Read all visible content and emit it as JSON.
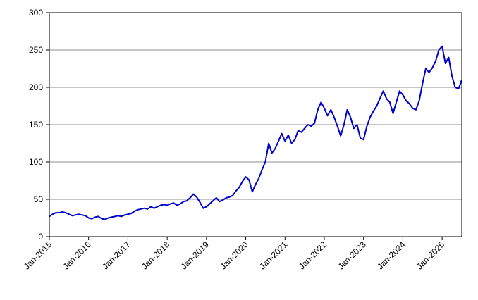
{
  "chart_data": {
    "type": "line",
    "title": "",
    "xlabel": "",
    "ylabel": "",
    "ylim": [
      0,
      300
    ],
    "yticks": [
      0,
      50,
      100,
      150,
      200,
      250,
      300
    ],
    "xlim": [
      "2015-01",
      "2025-07"
    ],
    "xtick_labels": [
      "Jan-2015",
      "Jan-2016",
      "Jan-2017",
      "Jan-2018",
      "Jan-2019",
      "Jan-2020",
      "Jan-2021",
      "Jan-2022",
      "Jan-2023",
      "Jan-2024",
      "Jan-2025"
    ],
    "grid": "horizontal",
    "legend": "none",
    "line_color": "#0000CC",
    "series": [
      {
        "x": [
          "2015-01",
          "2015-02",
          "2015-03",
          "2015-04",
          "2015-05",
          "2015-06",
          "2015-07",
          "2015-08",
          "2015-09",
          "2015-10",
          "2015-11",
          "2015-12",
          "2016-01",
          "2016-02",
          "2016-03",
          "2016-04",
          "2016-05",
          "2016-06",
          "2016-07",
          "2016-08",
          "2016-09",
          "2016-10",
          "2016-11",
          "2016-12",
          "2017-01",
          "2017-02",
          "2017-03",
          "2017-04",
          "2017-05",
          "2017-06",
          "2017-07",
          "2017-08",
          "2017-09",
          "2017-10",
          "2017-11",
          "2017-12",
          "2018-01",
          "2018-02",
          "2018-03",
          "2018-04",
          "2018-05",
          "2018-06",
          "2018-07",
          "2018-08",
          "2018-09",
          "2018-10",
          "2018-11",
          "2018-12",
          "2019-01",
          "2019-02",
          "2019-03",
          "2019-04",
          "2019-05",
          "2019-06",
          "2019-07",
          "2019-08",
          "2019-09",
          "2019-10",
          "2019-11",
          "2019-12",
          "2020-01",
          "2020-02",
          "2020-03",
          "2020-04",
          "2020-05",
          "2020-06",
          "2020-07",
          "2020-08",
          "2020-09",
          "2020-10",
          "2020-11",
          "2020-12",
          "2021-01",
          "2021-02",
          "2021-03",
          "2021-04",
          "2021-05",
          "2021-06",
          "2021-07",
          "2021-08",
          "2021-09",
          "2021-10",
          "2021-11",
          "2021-12",
          "2022-01",
          "2022-02",
          "2022-03",
          "2022-04",
          "2022-05",
          "2022-06",
          "2022-07",
          "2022-08",
          "2022-09",
          "2022-10",
          "2022-11",
          "2022-12",
          "2023-01",
          "2023-02",
          "2023-03",
          "2023-04",
          "2023-05",
          "2023-06",
          "2023-07",
          "2023-08",
          "2023-09",
          "2023-10",
          "2023-11",
          "2023-12",
          "2024-01",
          "2024-02",
          "2024-03",
          "2024-04",
          "2024-05",
          "2024-06",
          "2024-07",
          "2024-08",
          "2024-09",
          "2024-10",
          "2024-11",
          "2024-12",
          "2025-01",
          "2025-02",
          "2025-03",
          "2025-04",
          "2025-05",
          "2025-06",
          "2025-07"
        ],
        "values": [
          27,
          30,
          32,
          32,
          33,
          32,
          30,
          28,
          29,
          30,
          29,
          28,
          25,
          24,
          26,
          27,
          24,
          23,
          25,
          26,
          27,
          28,
          27,
          29,
          30,
          31,
          34,
          36,
          37,
          38,
          37,
          40,
          38,
          40,
          42,
          43,
          42,
          44,
          45,
          42,
          44,
          47,
          48,
          52,
          57,
          53,
          46,
          38,
          40,
          44,
          48,
          52,
          47,
          49,
          52,
          53,
          55,
          61,
          66,
          74,
          80,
          76,
          60,
          70,
          78,
          90,
          100,
          125,
          112,
          118,
          128,
          138,
          128,
          136,
          125,
          130,
          142,
          140,
          145,
          150,
          148,
          152,
          170,
          180,
          172,
          162,
          170,
          160,
          148,
          135,
          150,
          170,
          160,
          145,
          150,
          132,
          130,
          148,
          160,
          168,
          175,
          185,
          195,
          185,
          180,
          165,
          180,
          195,
          190,
          182,
          178,
          172,
          170,
          182,
          205,
          225,
          220,
          226,
          235,
          250,
          255,
          232,
          240,
          215,
          200,
          198,
          210
        ]
      }
    ]
  }
}
